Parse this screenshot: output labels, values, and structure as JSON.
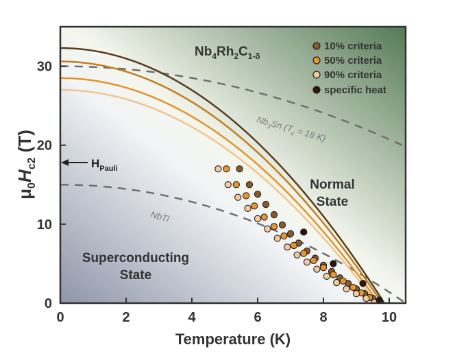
{
  "chart_data": {
    "type": "scatter",
    "xlabel": "Temperature (K)",
    "ylabel": {
      "mu": "μ",
      "mu_sub": "0",
      "H": "H",
      "H_sub": "c2",
      "unit": " (T)"
    },
    "xlim": [
      0,
      10.5
    ],
    "ylim": [
      0,
      35
    ],
    "xticks": [
      "0",
      "2",
      "4",
      "6",
      "8",
      "10"
    ],
    "yticks": [
      "0",
      "10",
      "20",
      "30"
    ],
    "compound": {
      "a": "Nb",
      "a_sub": "4",
      "b": "Rh",
      "b_sub": "2",
      "c": "C",
      "c_sub": "1-δ"
    },
    "regions": {
      "normal": [
        "Normal",
        "State"
      ],
      "super": [
        "Superconducting",
        "State"
      ]
    },
    "pauli": {
      "label": "H",
      "sub": "Pauli",
      "value": 18
    },
    "references": [
      {
        "name": "Nb3Sn",
        "label_main": "Nb",
        "label_sub": "3",
        "label_rest": "Sn (T",
        "label_sub2": "c",
        "label_end": " = 18 K)",
        "tc": 18,
        "hc2_0": 30
      },
      {
        "name": "NbTi",
        "label_main": "NbTi",
        "tc": 10.5,
        "hc2_0": 15
      }
    ],
    "fits": [
      {
        "name": "10% criteria fit",
        "tc": 9.85,
        "hc2_0": 32.3,
        "color": "#5a3d1c"
      },
      {
        "name": "50% criteria fit (upper)",
        "tc": 9.78,
        "hc2_0": 30.6,
        "color": "#c27d1e"
      },
      {
        "name": "50% criteria fit (lower)",
        "tc": 9.68,
        "hc2_0": 28.5,
        "color": "#e0952a"
      },
      {
        "name": "90% criteria fit",
        "tc": 9.6,
        "hc2_0": 27.0,
        "color": "#f2c48e"
      }
    ],
    "series": [
      {
        "name": "10% criteria",
        "color": "#8a5a2b",
        "points": [
          [
            5.45,
            17.0
          ],
          [
            5.75,
            15.0
          ],
          [
            6.0,
            13.8
          ],
          [
            6.25,
            12.5
          ],
          [
            6.5,
            11.2
          ],
          [
            6.75,
            9.9
          ],
          [
            7.0,
            8.8
          ],
          [
            7.25,
            7.6
          ],
          [
            7.5,
            6.6
          ],
          [
            7.75,
            5.7
          ],
          [
            8.0,
            4.8
          ],
          [
            8.25,
            4.0
          ],
          [
            8.5,
            3.2
          ],
          [
            8.75,
            2.5
          ],
          [
            9.0,
            1.8
          ],
          [
            9.25,
            1.2
          ],
          [
            9.5,
            0.6
          ],
          [
            9.72,
            0.1
          ]
        ]
      },
      {
        "name": "50% criteria",
        "color": "#e8972e",
        "points": [
          [
            5.05,
            17.0
          ],
          [
            5.35,
            15.0
          ],
          [
            5.65,
            13.6
          ],
          [
            5.9,
            12.3
          ],
          [
            6.2,
            10.9
          ],
          [
            6.5,
            9.7
          ],
          [
            6.8,
            8.5
          ],
          [
            7.1,
            7.3
          ],
          [
            7.4,
            6.3
          ],
          [
            7.7,
            5.4
          ],
          [
            8.0,
            4.5
          ],
          [
            8.3,
            3.6
          ],
          [
            8.6,
            2.8
          ],
          [
            8.9,
            2.0
          ],
          [
            9.15,
            1.3
          ],
          [
            9.4,
            0.7
          ],
          [
            9.62,
            0.15
          ]
        ]
      },
      {
        "name": "90% criteria",
        "color": "#f5c99e",
        "points": [
          [
            4.8,
            17.0
          ],
          [
            5.1,
            15.0
          ],
          [
            5.4,
            13.4
          ],
          [
            5.7,
            12.0
          ],
          [
            6.0,
            10.7
          ],
          [
            6.3,
            9.4
          ],
          [
            6.6,
            8.2
          ],
          [
            6.9,
            7.1
          ],
          [
            7.2,
            6.1
          ],
          [
            7.5,
            5.2
          ],
          [
            7.8,
            4.3
          ],
          [
            8.1,
            3.4
          ],
          [
            8.4,
            2.6
          ],
          [
            8.7,
            1.8
          ],
          [
            9.0,
            1.2
          ],
          [
            9.3,
            0.6
          ],
          [
            9.55,
            0.1
          ]
        ]
      },
      {
        "name": "specific heat",
        "color": "#2a1707",
        "points": [
          [
            7.4,
            9.0
          ],
          [
            8.3,
            5.0
          ],
          [
            9.2,
            2.5
          ],
          [
            9.7,
            0.4
          ]
        ]
      }
    ],
    "legend_position": "top-right"
  }
}
